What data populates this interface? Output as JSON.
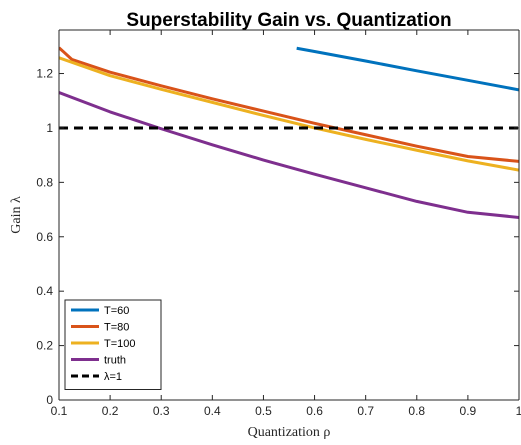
{
  "chart_data": {
    "type": "line",
    "title": "Superstability Gain vs. Quantization",
    "xlabel": "Quantization ρ",
    "ylabel": "Gain λ",
    "xlim": [
      0.1,
      1.0
    ],
    "ylim": [
      0,
      1.36
    ],
    "x_ticks": [
      0.1,
      0.2,
      0.3,
      0.4,
      0.5,
      0.6,
      0.7,
      0.8,
      0.9,
      1.0
    ],
    "x_tick_labels": [
      "0.1",
      "0.2",
      "0.3",
      "0.4",
      "0.5",
      "0.6",
      "0.7",
      "0.8",
      "0.9",
      "1"
    ],
    "y_ticks": [
      0,
      0.2,
      0.4,
      0.6,
      0.8,
      1.0,
      1.2
    ],
    "y_tick_labels": [
      "0",
      "0.2",
      "0.4",
      "0.6",
      "0.8",
      "1",
      "1.2"
    ],
    "grid": false,
    "legend_position": "bottom-left",
    "series": [
      {
        "name": "T=60",
        "color": "#0072BD",
        "style": "solid",
        "x": [
          0.565,
          0.6,
          0.7,
          0.8,
          0.9,
          1.0
        ],
        "y": [
          1.293,
          1.281,
          1.246,
          1.21,
          1.175,
          1.14
        ]
      },
      {
        "name": "T=80",
        "color": "#D95319",
        "style": "solid",
        "x": [
          0.1,
          0.11,
          0.125,
          0.2,
          0.3,
          0.4,
          0.5,
          0.6,
          0.7,
          0.8,
          0.9,
          1.0
        ],
        "y": [
          1.295,
          1.278,
          1.252,
          1.205,
          1.155,
          1.107,
          1.062,
          1.017,
          0.975,
          0.933,
          0.895,
          0.877
        ]
      },
      {
        "name": "T=100",
        "color": "#EDB120",
        "style": "solid",
        "x": [
          0.1,
          0.2,
          0.3,
          0.4,
          0.5,
          0.6,
          0.7,
          0.8,
          0.9,
          1.0
        ],
        "y": [
          1.258,
          1.192,
          1.142,
          1.094,
          1.046,
          1.0,
          0.958,
          0.918,
          0.879,
          0.845
        ]
      },
      {
        "name": "truth",
        "color": "#7E2F8E",
        "style": "solid",
        "x": [
          0.1,
          0.2,
          0.3,
          0.4,
          0.5,
          0.6,
          0.7,
          0.8,
          0.9,
          1.0
        ],
        "y": [
          1.13,
          1.059,
          0.997,
          0.938,
          0.882,
          0.83,
          0.78,
          0.73,
          0.69,
          0.671
        ]
      },
      {
        "name": "λ=1",
        "color": "#000000",
        "style": "dashed",
        "x": [
          0.1,
          1.0
        ],
        "y": [
          1.0,
          1.0
        ]
      }
    ]
  }
}
